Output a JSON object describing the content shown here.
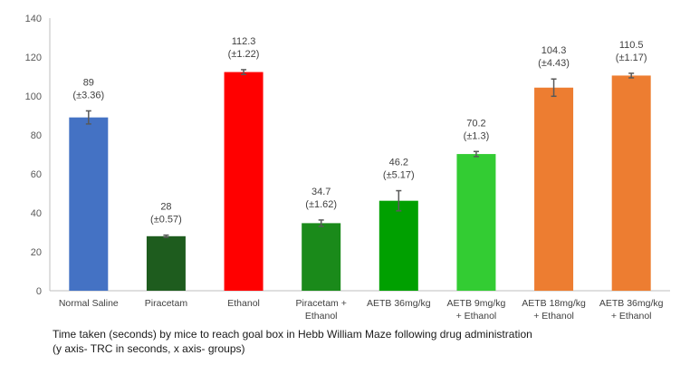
{
  "chart_data": {
    "type": "bar",
    "categories": [
      [
        "Normal Saline"
      ],
      [
        "Piracetam"
      ],
      [
        "Ethanol"
      ],
      [
        "Piracetam +",
        "Ethanol"
      ],
      [
        "AETB 36mg/kg"
      ],
      [
        "AETB 9mg/kg",
        "+ Ethanol"
      ],
      [
        "AETB 18mg/kg",
        "+ Ethanol"
      ],
      [
        "AETB 36mg/kg",
        "+ Ethanol"
      ]
    ],
    "values": [
      89,
      28,
      112.3,
      34.7,
      46.2,
      70.2,
      104.3,
      110.5
    ],
    "errors": [
      3.36,
      0.57,
      1.22,
      1.62,
      5.17,
      1.3,
      4.43,
      1.17
    ],
    "value_labels": [
      "89",
      "28",
      "112.3",
      "34.7",
      "46.2",
      "70.2",
      "104.3",
      "110.5"
    ],
    "error_labels": [
      "(±3.36)",
      "(±0.57)",
      "(±1.22)",
      "(±1.62)",
      "(±5.17)",
      "(±1.3)",
      "(±4.43)",
      "(±1.17)"
    ],
    "colors": [
      "#4472c4",
      "#1e5c1e",
      "#ff0000",
      "#1a8a1a",
      "#00a000",
      "#33cc33",
      "#ed7d31",
      "#ed7d31"
    ],
    "ylim": [
      0,
      140
    ],
    "yticks": [
      0,
      20,
      40,
      60,
      80,
      100,
      120,
      140
    ],
    "grid": false,
    "legend": "none"
  },
  "caption": {
    "line1": "Time taken (seconds) by mice to reach goal box in Hebb William  Maze following drug administration",
    "line2": "(y axis- TRC in seconds, x axis- groups)"
  }
}
